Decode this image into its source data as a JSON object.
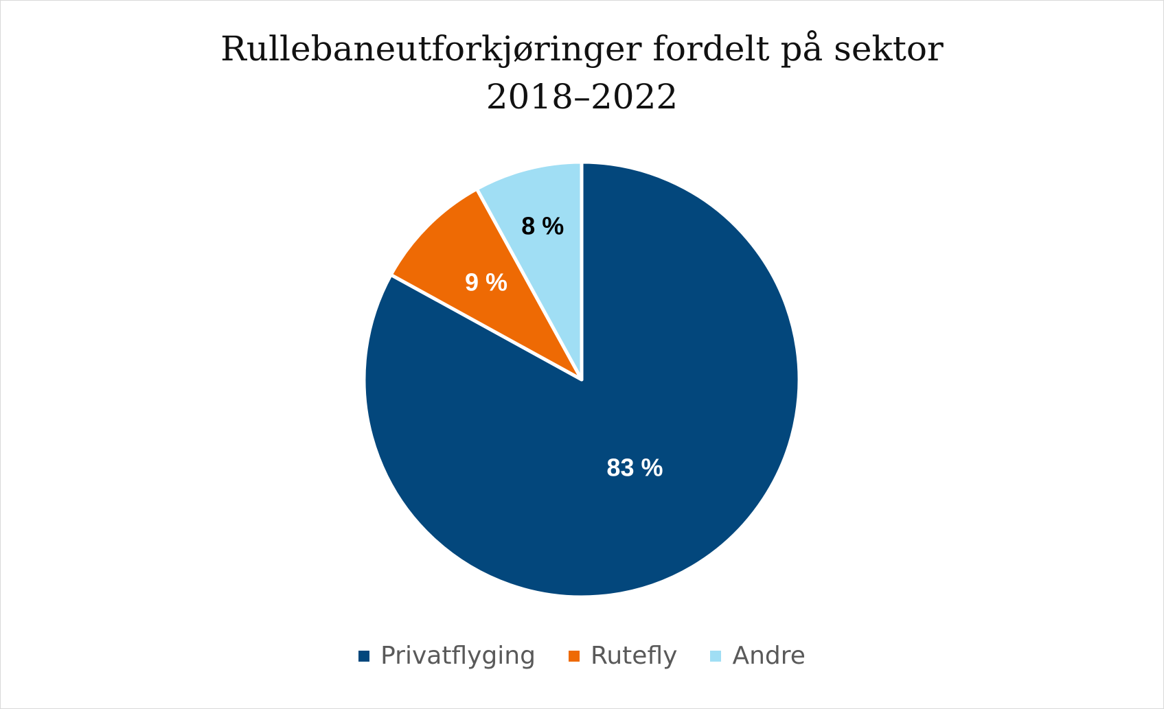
{
  "chart_data": {
    "type": "pie",
    "title": "Rullebaneutforkjøringer fordelt på sektor",
    "subtitle": "2018–2022",
    "categories": [
      "Privatflyging",
      "Rutefly",
      "Andre"
    ],
    "values": [
      83,
      9,
      8
    ],
    "labels": [
      "83 %",
      "9 %",
      "8 %"
    ],
    "colors": [
      "#03477c",
      "#ee6a04",
      "#a0def4"
    ],
    "label_colors": [
      "#ffffff",
      "#ffffff",
      "#000000"
    ],
    "legend_position": "bottom"
  }
}
